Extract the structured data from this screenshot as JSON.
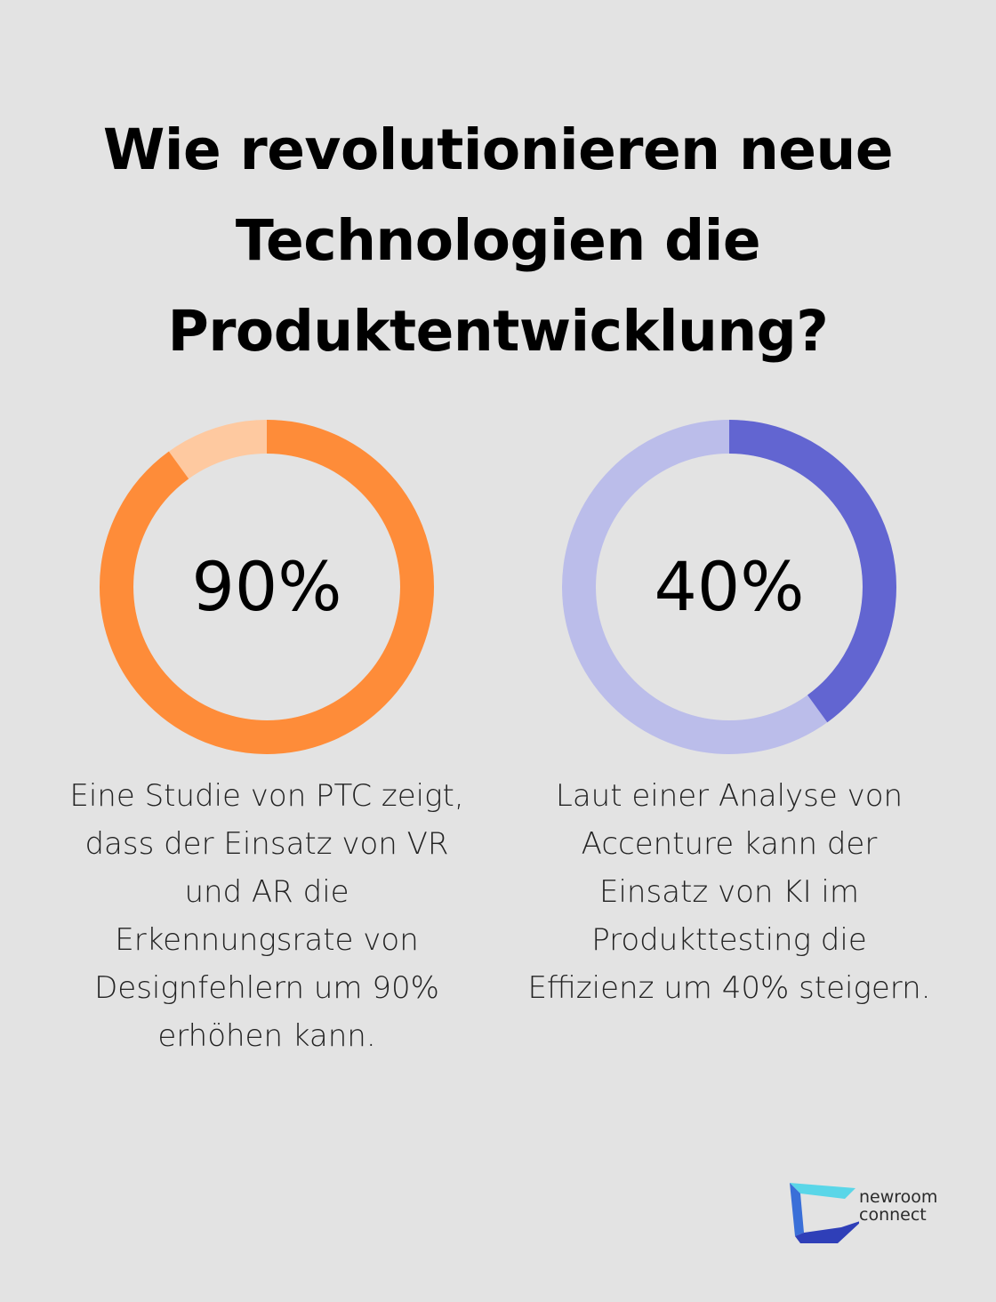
{
  "title_lines": [
    "Wie revolutionieren neue",
    "Technologien die",
    "Produktentwicklung?"
  ],
  "chart_data": [
    {
      "type": "pie",
      "values": [
        90,
        10
      ],
      "label": "90%",
      "colors": {
        "value": "#fe8c39",
        "rest": "#fec9a0"
      },
      "description_lines": [
        "Eine Studie von PTC zeigt,",
        "dass der Einsatz von VR",
        "und AR die",
        "Erkennungsrate von",
        "Designfehlern um 90%",
        "erhöhen kann."
      ]
    },
    {
      "type": "pie",
      "values": [
        40,
        60
      ],
      "label": "40%",
      "colors": {
        "value": "#6265d1",
        "rest": "#bbbdea"
      },
      "description_lines": [
        "Laut einer Analyse von",
        "Accenture kann der",
        "Einsatz von KI im",
        "Produkttesting die",
        "Effizienz um 40% steigern."
      ]
    }
  ],
  "logo": {
    "lines": [
      "newroom",
      "connect"
    ],
    "colors": [
      "#5ad6e8",
      "#3a6fd8",
      "#2f3fb8"
    ]
  }
}
